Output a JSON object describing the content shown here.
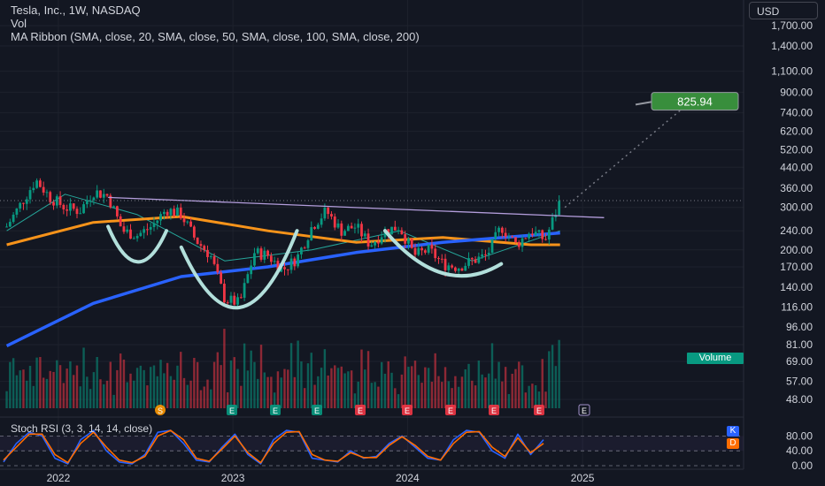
{
  "header": {
    "symbol_line": "Tesla, Inc., 1W, NASDAQ",
    "vol_label": "Vol",
    "ma_ribbon": "MA Ribbon (SMA, close, 20, SMA, close, 50, SMA, close, 100, SMA, close, 200)",
    "currency": "USD"
  },
  "target_label": "825.94",
  "volume_label": "Volume",
  "events": [
    "S",
    "E",
    "E",
    "E",
    "E",
    "E",
    "E",
    "E",
    "E",
    "E"
  ],
  "stoch_rsi": {
    "title": "Stoch RSI (3, 3, 14, 14, close)",
    "k_label": "K",
    "d_label": "D",
    "ticks": [
      "80.00",
      "40.00",
      "0.00"
    ]
  },
  "colors": {
    "background": "#131722",
    "up": "#089981",
    "down": "#f23645",
    "ma20": "#26a69a",
    "ma100": "#f7931a",
    "ma200": "#2962ff",
    "cup_handle": "#b2dfdb",
    "resistance": "#b39ddb",
    "target": "#388e3c",
    "stoch_k": "#2962ff",
    "stoch_d": "#ff6d00"
  },
  "chart_data": [
    {
      "type": "candlestick",
      "title": "Tesla, Inc., 1W, NASDAQ",
      "y_scale": "log",
      "y_ticks": [
        "1,700.00",
        "1,400.00",
        "1,100.00",
        "900.00",
        "740.00",
        "620.00",
        "520.00",
        "440.00",
        "360.00",
        "300.00",
        "240.00",
        "200.00",
        "170.00",
        "140.00",
        "116.00",
        "96.00",
        "81.00",
        "69.00",
        "57.00",
        "48.00"
      ],
      "x_ticks": [
        "2022",
        "2023",
        "2024",
        "2025"
      ],
      "ylim": [
        45,
        1900
      ],
      "x_range": [
        "2021-09",
        "2025-03"
      ],
      "annotations": {
        "target_price": 825.94,
        "resistance_line": {
          "from": [
            "2022-04",
            330
          ],
          "to": [
            "2025-02",
            272
          ]
        },
        "pattern": "cup and handle / inverse head and shoulders"
      },
      "price_path": [
        [
          "2021-09",
          250
        ],
        [
          "2021-11",
          390
        ],
        [
          "2021-12",
          330
        ],
        [
          "2022-01",
          300
        ],
        [
          "2022-02",
          290
        ],
        [
          "2022-03",
          350
        ],
        [
          "2022-04",
          335
        ],
        [
          "2022-05",
          240
        ],
        [
          "2022-06",
          230
        ],
        [
          "2022-07",
          250
        ],
        [
          "2022-08",
          295
        ],
        [
          "2022-09",
          280
        ],
        [
          "2022-10",
          220
        ],
        [
          "2022-11",
          190
        ],
        [
          "2022-12",
          125
        ],
        [
          "2023-01",
          120
        ],
        [
          "2023-02",
          195
        ],
        [
          "2023-03",
          190
        ],
        [
          "2023-04",
          165
        ],
        [
          "2023-05",
          185
        ],
        [
          "2023-06",
          250
        ],
        [
          "2023-07",
          290
        ],
        [
          "2023-08",
          240
        ],
        [
          "2023-09",
          250
        ],
        [
          "2023-10",
          210
        ],
        [
          "2023-11",
          240
        ],
        [
          "2023-12",
          250
        ],
        [
          "2024-01",
          190
        ],
        [
          "2024-02",
          200
        ],
        [
          "2024-03",
          175
        ],
        [
          "2024-04",
          170
        ],
        [
          "2024-05",
          180
        ],
        [
          "2024-06",
          190
        ],
        [
          "2024-07",
          250
        ],
        [
          "2024-08",
          210
        ],
        [
          "2024-09",
          240
        ],
        [
          "2024-10",
          220
        ],
        [
          "2024-11",
          320
        ]
      ],
      "series": [
        {
          "name": "SMA 20",
          "values": [
            [
              "2021-09",
              240
            ],
            [
              "2022-01",
              340
            ],
            [
              "2022-06",
              280
            ],
            [
              "2022-12",
              180
            ],
            [
              "2023-06",
              200
            ],
            [
              "2023-12",
              240
            ],
            [
              "2024-05",
              180
            ],
            [
              "2024-11",
              240
            ]
          ]
        },
        {
          "name": "SMA 100",
          "values": [
            [
              "2021-09",
              210
            ],
            [
              "2022-03",
              260
            ],
            [
              "2022-09",
              275
            ],
            [
              "2023-03",
              240
            ],
            [
              "2023-09",
              215
            ],
            [
              "2024-03",
              225
            ],
            [
              "2024-09",
              210
            ],
            [
              "2024-11",
              210
            ]
          ]
        },
        {
          "name": "SMA 200",
          "values": [
            [
              "2021-09",
              80
            ],
            [
              "2022-03",
              120
            ],
            [
              "2022-09",
              155
            ],
            [
              "2023-03",
              170
            ],
            [
              "2023-09",
              195
            ],
            [
              "2024-03",
              215
            ],
            [
              "2024-11",
              235
            ]
          ]
        }
      ]
    },
    {
      "type": "line",
      "title": "Stoch RSI (3, 3, 14, 14, close)",
      "ylim": [
        0,
        100
      ],
      "levels": [
        80,
        40,
        0
      ],
      "series": [
        {
          "name": "K",
          "values": [
            10,
            60,
            90,
            80,
            20,
            5,
            70,
            95,
            40,
            10,
            5,
            30,
            90,
            95,
            60,
            15,
            10,
            50,
            85,
            30,
            5,
            70,
            95,
            90,
            20,
            15,
            10,
            40,
            20,
            25,
            60,
            80,
            50,
            20,
            15,
            70,
            95,
            90,
            40,
            20,
            85,
            30,
            70
          ]
        },
        {
          "name": "D",
          "values": [
            15,
            50,
            85,
            85,
            30,
            8,
            60,
            90,
            50,
            15,
            8,
            25,
            80,
            95,
            70,
            20,
            12,
            45,
            80,
            35,
            8,
            60,
            90,
            92,
            30,
            15,
            12,
            35,
            22,
            22,
            55,
            78,
            55,
            25,
            15,
            60,
            90,
            92,
            50,
            25,
            75,
            35,
            60
          ]
        }
      ]
    }
  ]
}
